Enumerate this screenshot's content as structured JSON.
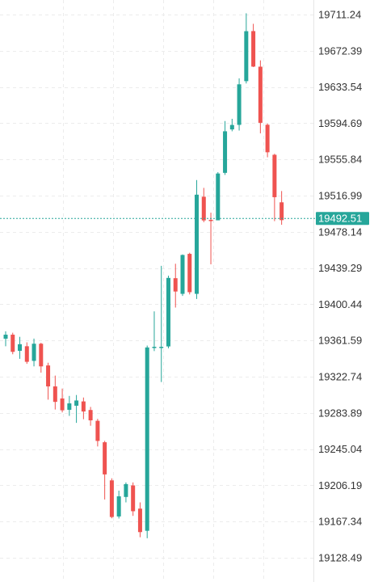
{
  "chart_data": {
    "type": "candlestick",
    "y_ticks": [
      19711.24,
      19672.39,
      19633.54,
      19594.69,
      19555.84,
      19516.99,
      19478.14,
      19439.29,
      19400.44,
      19361.59,
      19322.74,
      19283.89,
      19245.04,
      19206.19,
      19167.34,
      19128.49
    ],
    "y_tick_labels": [
      "19711.24",
      "19672.39",
      "19633.54",
      "19594.69",
      "19555.84",
      "19516.99",
      "19478.14",
      "19439.29",
      "19400.44",
      "19361.59",
      "19322.74",
      "19283.89",
      "19245.04",
      "19206.19",
      "19167.34",
      "19128.49"
    ],
    "ylim": [
      19125,
      19718
    ],
    "current_price": 19492.51,
    "current_price_label": "19492.51",
    "grid": true,
    "colors": {
      "up": "#26a69a",
      "down": "#ef5350",
      "grid": "#ececec",
      "price_line": "#26a69a",
      "price_label_bg": "#26a69a",
      "price_label_text": "#ffffff",
      "axis_text": "#333333"
    },
    "candles": [
      {
        "open": 19363.5,
        "high": 19371.4,
        "low": 19355.4,
        "close": 19367.8
      },
      {
        "open": 19367.8,
        "high": 19369.9,
        "low": 19346.8,
        "close": 19349.4
      },
      {
        "open": 19350.5,
        "high": 19365.5,
        "low": 19341.9,
        "close": 19357.6
      },
      {
        "open": 19355.4,
        "high": 19359.6,
        "low": 19336.5,
        "close": 19338.7
      },
      {
        "open": 19339.7,
        "high": 19363.6,
        "low": 19333.8,
        "close": 19358.1
      },
      {
        "open": 19358.1,
        "high": 19359.1,
        "low": 19327.1,
        "close": 19333.8
      },
      {
        "open": 19334.8,
        "high": 19337.7,
        "low": 19298.1,
        "close": 19312.3
      },
      {
        "open": 19312.3,
        "high": 19323.9,
        "low": 19287.5,
        "close": 19295.7
      },
      {
        "open": 19299.4,
        "high": 19310.0,
        "low": 19284.4,
        "close": 19286.7
      },
      {
        "open": 19287.2,
        "high": 19302.1,
        "low": 19280.7,
        "close": 19294.1
      },
      {
        "open": 19291.6,
        "high": 19303.1,
        "low": 19273.2,
        "close": 19297.2
      },
      {
        "open": 19296.2,
        "high": 19300.4,
        "low": 19277.1,
        "close": 19285.4
      },
      {
        "open": 19287.0,
        "high": 19290.3,
        "low": 19270.1,
        "close": 19275.9
      },
      {
        "open": 19275.4,
        "high": 19277.5,
        "low": 19247.9,
        "close": 19253.8
      },
      {
        "open": 19252.4,
        "high": 19253.9,
        "low": 19191.0,
        "close": 19217.9
      },
      {
        "open": 19211.5,
        "high": 19213.7,
        "low": 19170.8,
        "close": 19172.2
      },
      {
        "open": 19172.8,
        "high": 19200.5,
        "low": 19170.6,
        "close": 19194.4
      },
      {
        "open": 19193.7,
        "high": 19209.3,
        "low": 19187.9,
        "close": 19207.5
      },
      {
        "open": 19206.1,
        "high": 19209.3,
        "low": 19173.4,
        "close": 19178.4
      },
      {
        "open": 19181.2,
        "high": 19187.9,
        "low": 19150.5,
        "close": 19156.0
      },
      {
        "open": 19157.4,
        "high": 19356.1,
        "low": 19149.4,
        "close": 19354.1
      },
      {
        "open": 19353.9,
        "high": 19392.8,
        "low": 19350.2,
        "close": 19354.8
      },
      {
        "open": 19353.7,
        "high": 19441.7,
        "low": 19317.0,
        "close": 19354.8
      },
      {
        "open": 19355.2,
        "high": 19431.1,
        "low": 19353.2,
        "close": 19428.7
      },
      {
        "open": 19428.4,
        "high": 19443.9,
        "low": 19396.9,
        "close": 19414.1
      },
      {
        "open": 19411.6,
        "high": 19453.9,
        "low": 19409.3,
        "close": 19453.3
      },
      {
        "open": 19454.5,
        "high": 19455.7,
        "low": 19411.0,
        "close": 19413.4
      },
      {
        "open": 19411.6,
        "high": 19533.7,
        "low": 19406.1,
        "close": 19518.0
      },
      {
        "open": 19515.8,
        "high": 19525.3,
        "low": 19488.5,
        "close": 19490.4
      },
      {
        "open": 19491.0,
        "high": 19498.7,
        "low": 19443.3,
        "close": 19490.6
      },
      {
        "open": 19490.5,
        "high": 19542.2,
        "low": 19491.7,
        "close": 19540.7
      },
      {
        "open": 19541.4,
        "high": 19597.0,
        "low": 19539.2,
        "close": 19586.0
      },
      {
        "open": 19588.0,
        "high": 19599.4,
        "low": 19586.0,
        "close": 19592.8
      },
      {
        "open": 19592.9,
        "high": 19642.8,
        "low": 19586.8,
        "close": 19636.4
      },
      {
        "open": 19639.8,
        "high": 19712.6,
        "low": 19637.3,
        "close": 19693.4
      },
      {
        "open": 19693.5,
        "high": 19701.3,
        "low": 19654.9,
        "close": 19655.4
      },
      {
        "open": 19655.3,
        "high": 19662.1,
        "low": 19583.8,
        "close": 19595.1
      },
      {
        "open": 19593.0,
        "high": 19594.3,
        "low": 19558.1,
        "close": 19563.5
      },
      {
        "open": 19560.8,
        "high": 19561.9,
        "low": 19489.6,
        "close": 19515.3
      },
      {
        "open": 19509.8,
        "high": 19521.9,
        "low": 19485.7,
        "close": 19490.7
      }
    ]
  }
}
